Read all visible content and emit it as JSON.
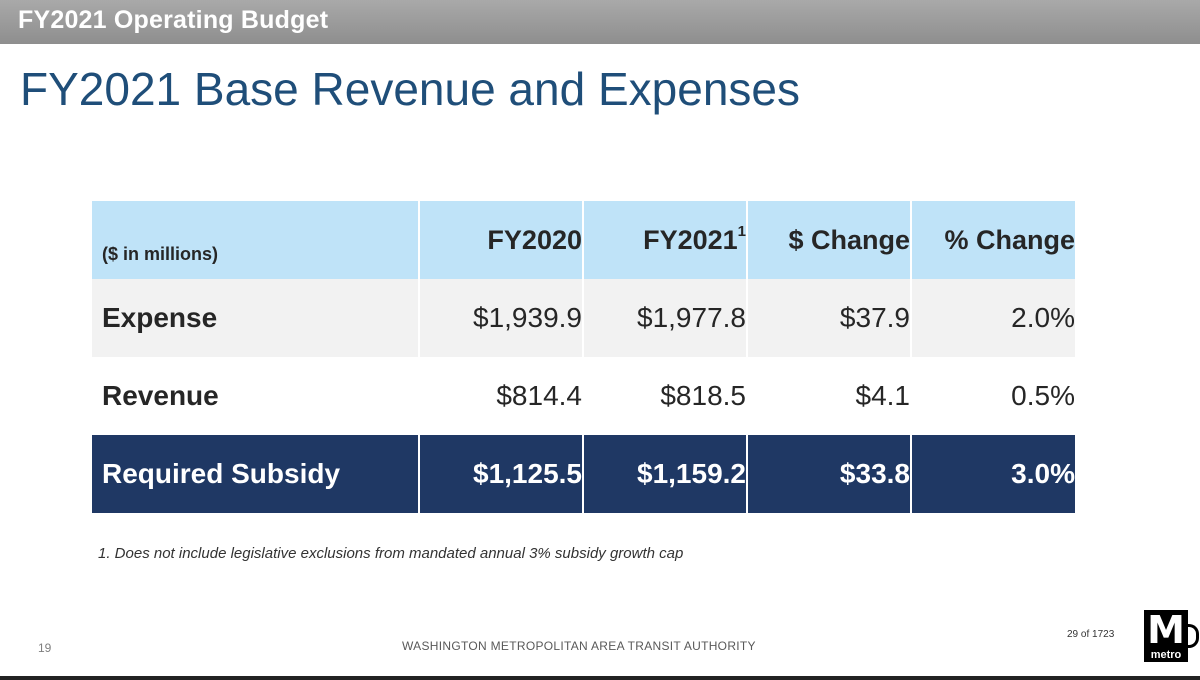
{
  "header": {
    "section": "FY2021 Operating Budget"
  },
  "title": "FY2021 Base Revenue and Expenses",
  "table": {
    "unit_label": "($ in millions)",
    "columns": [
      "FY2020",
      "FY2021",
      "$ Change",
      "% Change"
    ],
    "fy2021_footnote_marker": "1",
    "rows": [
      {
        "label": "Expense",
        "fy2020": "$1,939.9",
        "fy2021": "$1,977.8",
        "change": "$37.9",
        "pct": "2.0%"
      },
      {
        "label": "Revenue",
        "fy2020": "$814.4",
        "fy2021": "$818.5",
        "change": "$4.1",
        "pct": "0.5%"
      },
      {
        "label": "Required Subsidy",
        "fy2020": "$1,125.5",
        "fy2021": "$1,159.2",
        "change": "$33.8",
        "pct": "3.0%"
      }
    ]
  },
  "footnote": "1.  Does not include legislative exclusions from mandated annual 3% subsidy growth cap",
  "footer": {
    "page_number": "19",
    "organization": "WASHINGTON METROPOLITAN AREA TRANSIT AUTHORITY",
    "page_count": "29 of 1723",
    "logo_letter": "M",
    "logo_word": "metro"
  },
  "colors": {
    "header_bar": "#9b9b9b",
    "title": "#1f4e79",
    "table_header": "#bfe3f8",
    "subsidy_row": "#1f3864"
  }
}
